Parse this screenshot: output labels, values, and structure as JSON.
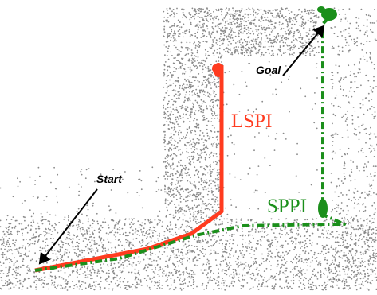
{
  "labels": {
    "start": "Start",
    "goal": "Goal",
    "lspi": "LSPI",
    "sppi": "SPPI"
  },
  "colors": {
    "lspi": "#ff3b1f",
    "sppi": "#1b8f1b",
    "arrow": "#000000",
    "dots": "#8a8a8a",
    "background": "#ffffff"
  }
}
